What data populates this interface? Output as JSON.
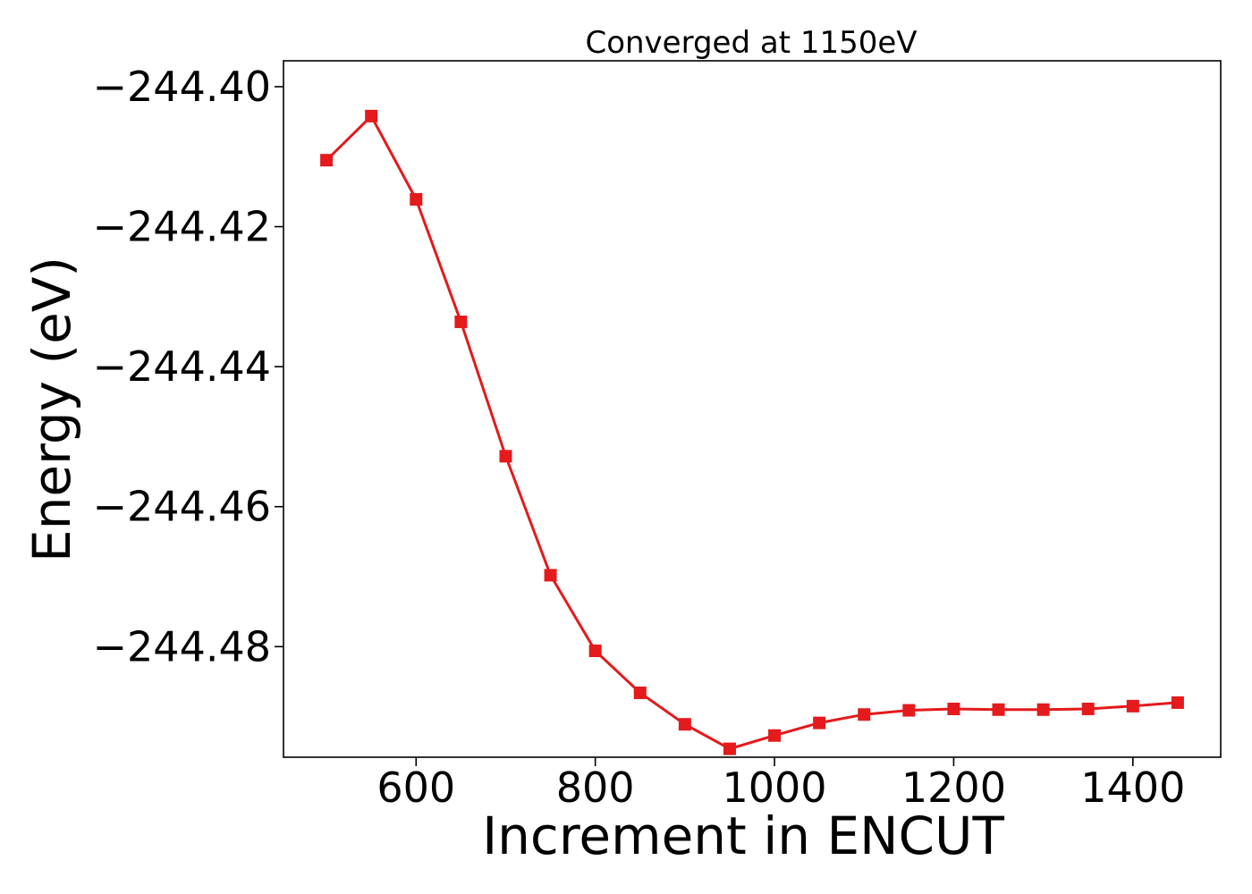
{
  "chart_data": {
    "type": "line",
    "title": "Converged at 1150eV",
    "xlabel": "Increment in ENCUT",
    "ylabel": "Energy (eV)",
    "xlim": [
      452,
      1498
    ],
    "ylim": [
      -244.4958,
      -244.3963
    ],
    "x_ticks": [
      600,
      800,
      1000,
      1200,
      1400
    ],
    "y_ticks": [
      -244.4,
      -244.42,
      -244.44,
      -244.46,
      -244.48
    ],
    "y_tick_labels": [
      "−244.40",
      "−244.42",
      "−244.44",
      "−244.46",
      "−244.48"
    ],
    "grid": false,
    "legend": "none",
    "marker": "square",
    "color": "#e41a1c",
    "series": [
      {
        "x": [
          500,
          550,
          600,
          650,
          700,
          750,
          800,
          850,
          900,
          950,
          1000,
          1050,
          1100,
          1150,
          1200,
          1250,
          1300,
          1350,
          1400,
          1450
        ],
        "y": [
          -244.4105,
          -244.4042,
          -244.4161,
          -244.4336,
          -244.4528,
          -244.4698,
          -244.4806,
          -244.4866,
          -244.4911,
          -244.4946,
          -244.4927,
          -244.4909,
          -244.4897,
          -244.4891,
          -244.4889,
          -244.489,
          -244.489,
          -244.4889,
          -244.4885,
          -244.488
        ]
      }
    ]
  }
}
